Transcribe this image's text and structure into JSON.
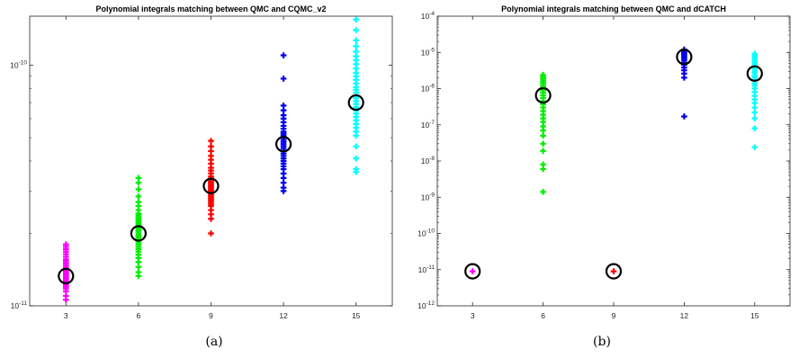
{
  "chart_data": [
    {
      "type": "scatter",
      "title": "Polynomial integrals matching between QMC and CQMC_v2",
      "caption": "(a)",
      "xlabel": "",
      "ylabel": "",
      "yscale": "log",
      "xlim": [
        1.5,
        16.5
      ],
      "ylim": [
        1e-11,
        1.6e-10
      ],
      "x_ticks": [
        3,
        6,
        9,
        12,
        15
      ],
      "y_ticks": [
        {
          "value": 1e-11,
          "base": "10",
          "exp": "-11"
        },
        {
          "value": 1e-10,
          "base": "10",
          "exp": "-10"
        }
      ],
      "grid": false,
      "marker": "plus",
      "series": [
        {
          "x": 3,
          "color": "#ff00ff",
          "points": [
            1.06e-11,
            1.1e-11,
            1.15e-11,
            1.18e-11,
            1.2e-11,
            1.22e-11,
            1.24e-11,
            1.26e-11,
            1.28e-11,
            1.3e-11,
            1.32e-11,
            1.34e-11,
            1.36e-11,
            1.38e-11,
            1.4e-11,
            1.42e-11,
            1.44e-11,
            1.47e-11,
            1.5e-11,
            1.53e-11,
            1.56e-11,
            1.6e-11,
            1.64e-11,
            1.68e-11,
            1.72e-11,
            1.76e-11,
            1.8e-11
          ],
          "mean": 1.33e-11
        },
        {
          "x": 6,
          "color": "#00ee00",
          "points": [
            1.33e-11,
            1.38e-11,
            1.45e-11,
            1.52e-11,
            1.58e-11,
            1.63e-11,
            1.68e-11,
            1.72e-11,
            1.76e-11,
            1.8e-11,
            1.84e-11,
            1.88e-11,
            1.92e-11,
            1.96e-11,
            2e-11,
            2.04e-11,
            2.08e-11,
            2.12e-11,
            2.16e-11,
            2.2e-11,
            2.24e-11,
            2.28e-11,
            2.32e-11,
            2.37e-11,
            2.42e-11,
            2.5e-11,
            2.6e-11,
            2.7e-11,
            2.85e-11,
            3.05e-11,
            3.25e-11,
            3.4e-11
          ],
          "mean": 2e-11
        },
        {
          "x": 9,
          "color": "#ff0000",
          "points": [
            2e-11,
            2.3e-11,
            2.4e-11,
            2.5e-11,
            2.6e-11,
            2.65e-11,
            2.7e-11,
            2.75e-11,
            2.8e-11,
            2.85e-11,
            2.9e-11,
            2.95e-11,
            3e-11,
            3.05e-11,
            3.1e-11,
            3.15e-11,
            3.2e-11,
            3.25e-11,
            3.3e-11,
            3.38e-11,
            3.45e-11,
            3.55e-11,
            3.65e-11,
            3.75e-11,
            3.9e-11,
            4.05e-11,
            4.2e-11,
            4.4e-11,
            4.6e-11,
            4.85e-11
          ],
          "mean": 3.15e-11
        },
        {
          "x": 12,
          "color": "#0000ee",
          "points": [
            3e-11,
            3.1e-11,
            3.25e-11,
            3.4e-11,
            3.55e-11,
            3.7e-11,
            3.8e-11,
            3.9e-11,
            4e-11,
            4.1e-11,
            4.2e-11,
            4.3e-11,
            4.4e-11,
            4.5e-11,
            4.6e-11,
            4.7e-11,
            4.8e-11,
            4.9e-11,
            5e-11,
            5.1e-11,
            5.2e-11,
            5.3e-11,
            5.45e-11,
            5.6e-11,
            5.8e-11,
            6e-11,
            6.2e-11,
            6.5e-11,
            6.8e-11,
            8.8e-11,
            1.1e-10
          ],
          "mean": 4.7e-11
        },
        {
          "x": 15,
          "color": "#00ffff",
          "points": [
            3.6e-11,
            3.7e-11,
            4.1e-11,
            4.6e-11,
            5.1e-11,
            5.3e-11,
            5.5e-11,
            5.7e-11,
            5.9e-11,
            6.1e-11,
            6.3e-11,
            6.5e-11,
            6.7e-11,
            6.9e-11,
            7.1e-11,
            7.3e-11,
            7.5e-11,
            7.7e-11,
            7.9e-11,
            8.1e-11,
            8.4e-11,
            8.7e-11,
            9e-11,
            9.3e-11,
            9.7e-11,
            1.01e-10,
            1.05e-10,
            1.09e-10,
            1.14e-10,
            1.2e-10,
            1.27e-10,
            1.4e-10,
            1.55e-10
          ],
          "mean": 7e-11
        }
      ]
    },
    {
      "type": "scatter",
      "title": "Polynomial integrals matching between QMC and dCATCH",
      "caption": "(b)",
      "xlabel": "",
      "ylabel": "",
      "yscale": "log",
      "xlim": [
        1.5,
        16.5
      ],
      "ylim": [
        1e-12,
        0.0001
      ],
      "x_ticks": [
        3,
        6,
        9,
        12,
        15
      ],
      "y_ticks": [
        {
          "value": 1e-12,
          "base": "10",
          "exp": "-12"
        },
        {
          "value": 1e-11,
          "base": "10",
          "exp": "-11"
        },
        {
          "value": 1e-10,
          "base": "10",
          "exp": "-10"
        },
        {
          "value": 1e-09,
          "base": "10",
          "exp": "-9"
        },
        {
          "value": 1e-08,
          "base": "10",
          "exp": "-8"
        },
        {
          "value": 1e-07,
          "base": "10",
          "exp": "-7"
        },
        {
          "value": 1e-06,
          "base": "10",
          "exp": "-6"
        },
        {
          "value": 1e-05,
          "base": "10",
          "exp": "-5"
        },
        {
          "value": 0.0001,
          "base": "10",
          "exp": "-4"
        }
      ],
      "grid": false,
      "marker": "plus",
      "series": [
        {
          "x": 3,
          "color": "#ff00ff",
          "points": [
            9e-12
          ],
          "mean": 9e-12
        },
        {
          "x": 6,
          "color": "#00ee00",
          "points": [
            1.4e-09,
            6e-09,
            8e-09,
            1.9e-08,
            3e-08,
            5e-08,
            7e-08,
            9e-08,
            1.2e-07,
            1.5e-07,
            1.9e-07,
            2.4e-07,
            3e-07,
            3.7e-07,
            4.5e-07,
            5.5e-07,
            6.5e-07,
            7.7e-07,
            9e-07,
            1.05e-06,
            1.2e-06,
            1.4e-06,
            1.6e-06,
            1.85e-06,
            2.1e-06,
            2.4e-06
          ],
          "mean": 6.5e-07
        },
        {
          "x": 9,
          "color": "#ff0000",
          "points": [
            9e-12
          ],
          "mean": 9e-12
        },
        {
          "x": 12,
          "color": "#0000ee",
          "points": [
            1.7e-07,
            2e-06,
            2.6e-06,
            3.2e-06,
            3.8e-06,
            4.5e-06,
            5.2e-06,
            6e-06,
            6.8e-06,
            7.6e-06,
            8.4e-06,
            9.2e-06,
            1e-05,
            1.1e-05,
            1.2e-05
          ],
          "mean": 7.5e-06
        },
        {
          "x": 15,
          "color": "#00ffff",
          "points": [
            2.4e-08,
            8e-08,
            1.5e-07,
            2.2e-07,
            3e-07,
            4e-07,
            5e-07,
            6.3e-07,
            8e-07,
            1e-06,
            1.2e-06,
            1.4e-06,
            1.7e-06,
            2e-06,
            2.3e-06,
            2.7e-06,
            3.1e-06,
            3.6e-06,
            4.2e-06,
            4.8e-06,
            5.5e-06,
            6.3e-06,
            7.2e-06,
            8.2e-06,
            9.2e-06
          ],
          "mean": 2.6e-06
        }
      ]
    }
  ]
}
